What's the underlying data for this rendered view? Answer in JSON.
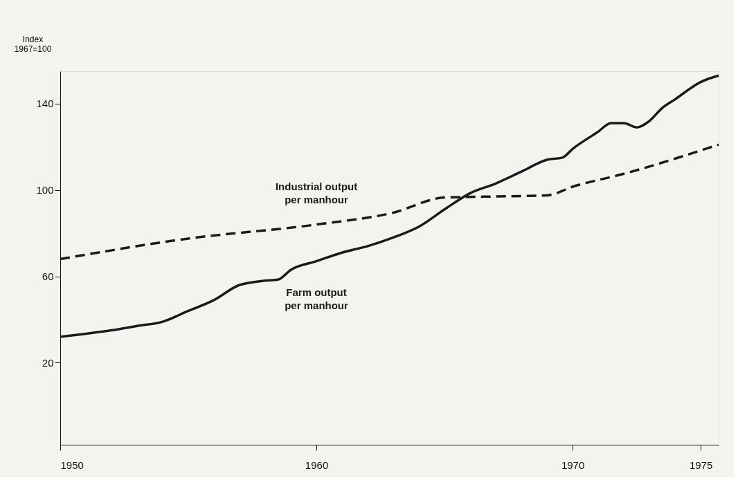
{
  "chart_data": {
    "type": "line",
    "ylabel": "Index\n1967=100",
    "x": [
      1950,
      1952,
      1953,
      1954,
      1955,
      1956,
      1957,
      1958,
      1958.5,
      1959,
      1960,
      1961,
      1962,
      1963,
      1964,
      1965,
      1966,
      1967,
      1968,
      1969,
      1969.6,
      1970,
      1971,
      1971.5,
      1972,
      1972.5,
      1973,
      1973.5,
      1974,
      1975,
      1975.7
    ],
    "series": [
      {
        "name": "Farm output\nper manhour",
        "color": "#1a1a1a",
        "line_style": "solid",
        "values": [
          32,
          35,
          37,
          39,
          44,
          49,
          56,
          58,
          58.5,
          63,
          67,
          71,
          74,
          78,
          83,
          91,
          98.5,
          103,
          108.5,
          114,
          115,
          119,
          127,
          131,
          131,
          129,
          132,
          138,
          142,
          150,
          153
        ]
      },
      {
        "name": "Industrial output\nper manhour",
        "color": "#1a1a1a",
        "line_style": "dashed",
        "x": [
          1950,
          1955,
          1960,
          1963,
          1965,
          1967,
          1969,
          1970,
          1972,
          1975.7
        ],
        "values": [
          68,
          77.5,
          84,
          89.5,
          96.5,
          97,
          97.5,
          101.5,
          107.5,
          121
        ]
      }
    ],
    "xlim": [
      1950,
      1975.7
    ],
    "xticks": [
      1950,
      1960,
      1970,
      1975
    ],
    "ylim": [
      -18,
      155
    ],
    "yticks": [
      20,
      60,
      100,
      140
    ],
    "grid": false
  }
}
